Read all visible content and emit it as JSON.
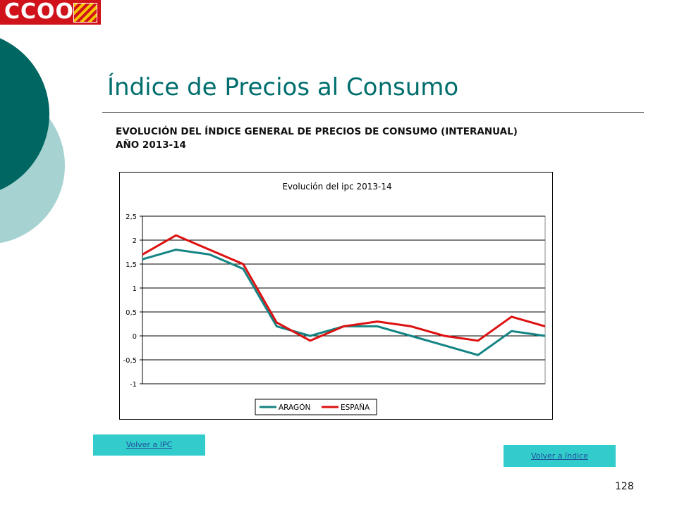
{
  "logo": {
    "text": "CCOO"
  },
  "page": {
    "title": "Índice de Precios al Consumo",
    "number": "128"
  },
  "subtitle": {
    "line1": "EVOLUCIÓN DEL ÍNDICE GENERAL DE PRECIOS DE CONSUMO (INTERANUAL)",
    "line2": "AÑO 2013-14"
  },
  "buttons": {
    "ipc": "Volver a IPC",
    "indice": "Volver a índice"
  },
  "colors": {
    "accent": "#006e6d",
    "button_bg": "#33cccc",
    "logo_red": "#d0131b"
  },
  "chart_data": {
    "type": "line",
    "title": "Evolución del ipc 2013-14",
    "xlabel": "",
    "ylabel": "",
    "x": [
      1,
      2,
      3,
      4,
      5,
      6,
      7,
      8,
      9,
      10,
      11,
      12,
      13
    ],
    "ylim": [
      -1,
      2.5
    ],
    "yticks": [
      -1,
      -0.5,
      0,
      0.5,
      1,
      1.5,
      2,
      2.5
    ],
    "ytick_labels": [
      "-1",
      "-0,5",
      "0",
      "0,5",
      "1",
      "1,5",
      "2",
      "2,5"
    ],
    "grid": true,
    "legend": "bottom",
    "series": [
      {
        "name": "ARAGÓN",
        "color": "#138483",
        "values": [
          1.6,
          1.8,
          1.7,
          1.4,
          0.2,
          0.0,
          0.2,
          0.2,
          0.0,
          -0.2,
          -0.4,
          0.1,
          0.0
        ]
      },
      {
        "name": "ESPAÑA",
        "color": "#dd1111",
        "values": [
          1.7,
          2.1,
          1.8,
          1.5,
          0.28,
          -0.1,
          0.2,
          0.3,
          0.2,
          0.0,
          -0.1,
          0.4,
          0.2
        ]
      }
    ]
  }
}
